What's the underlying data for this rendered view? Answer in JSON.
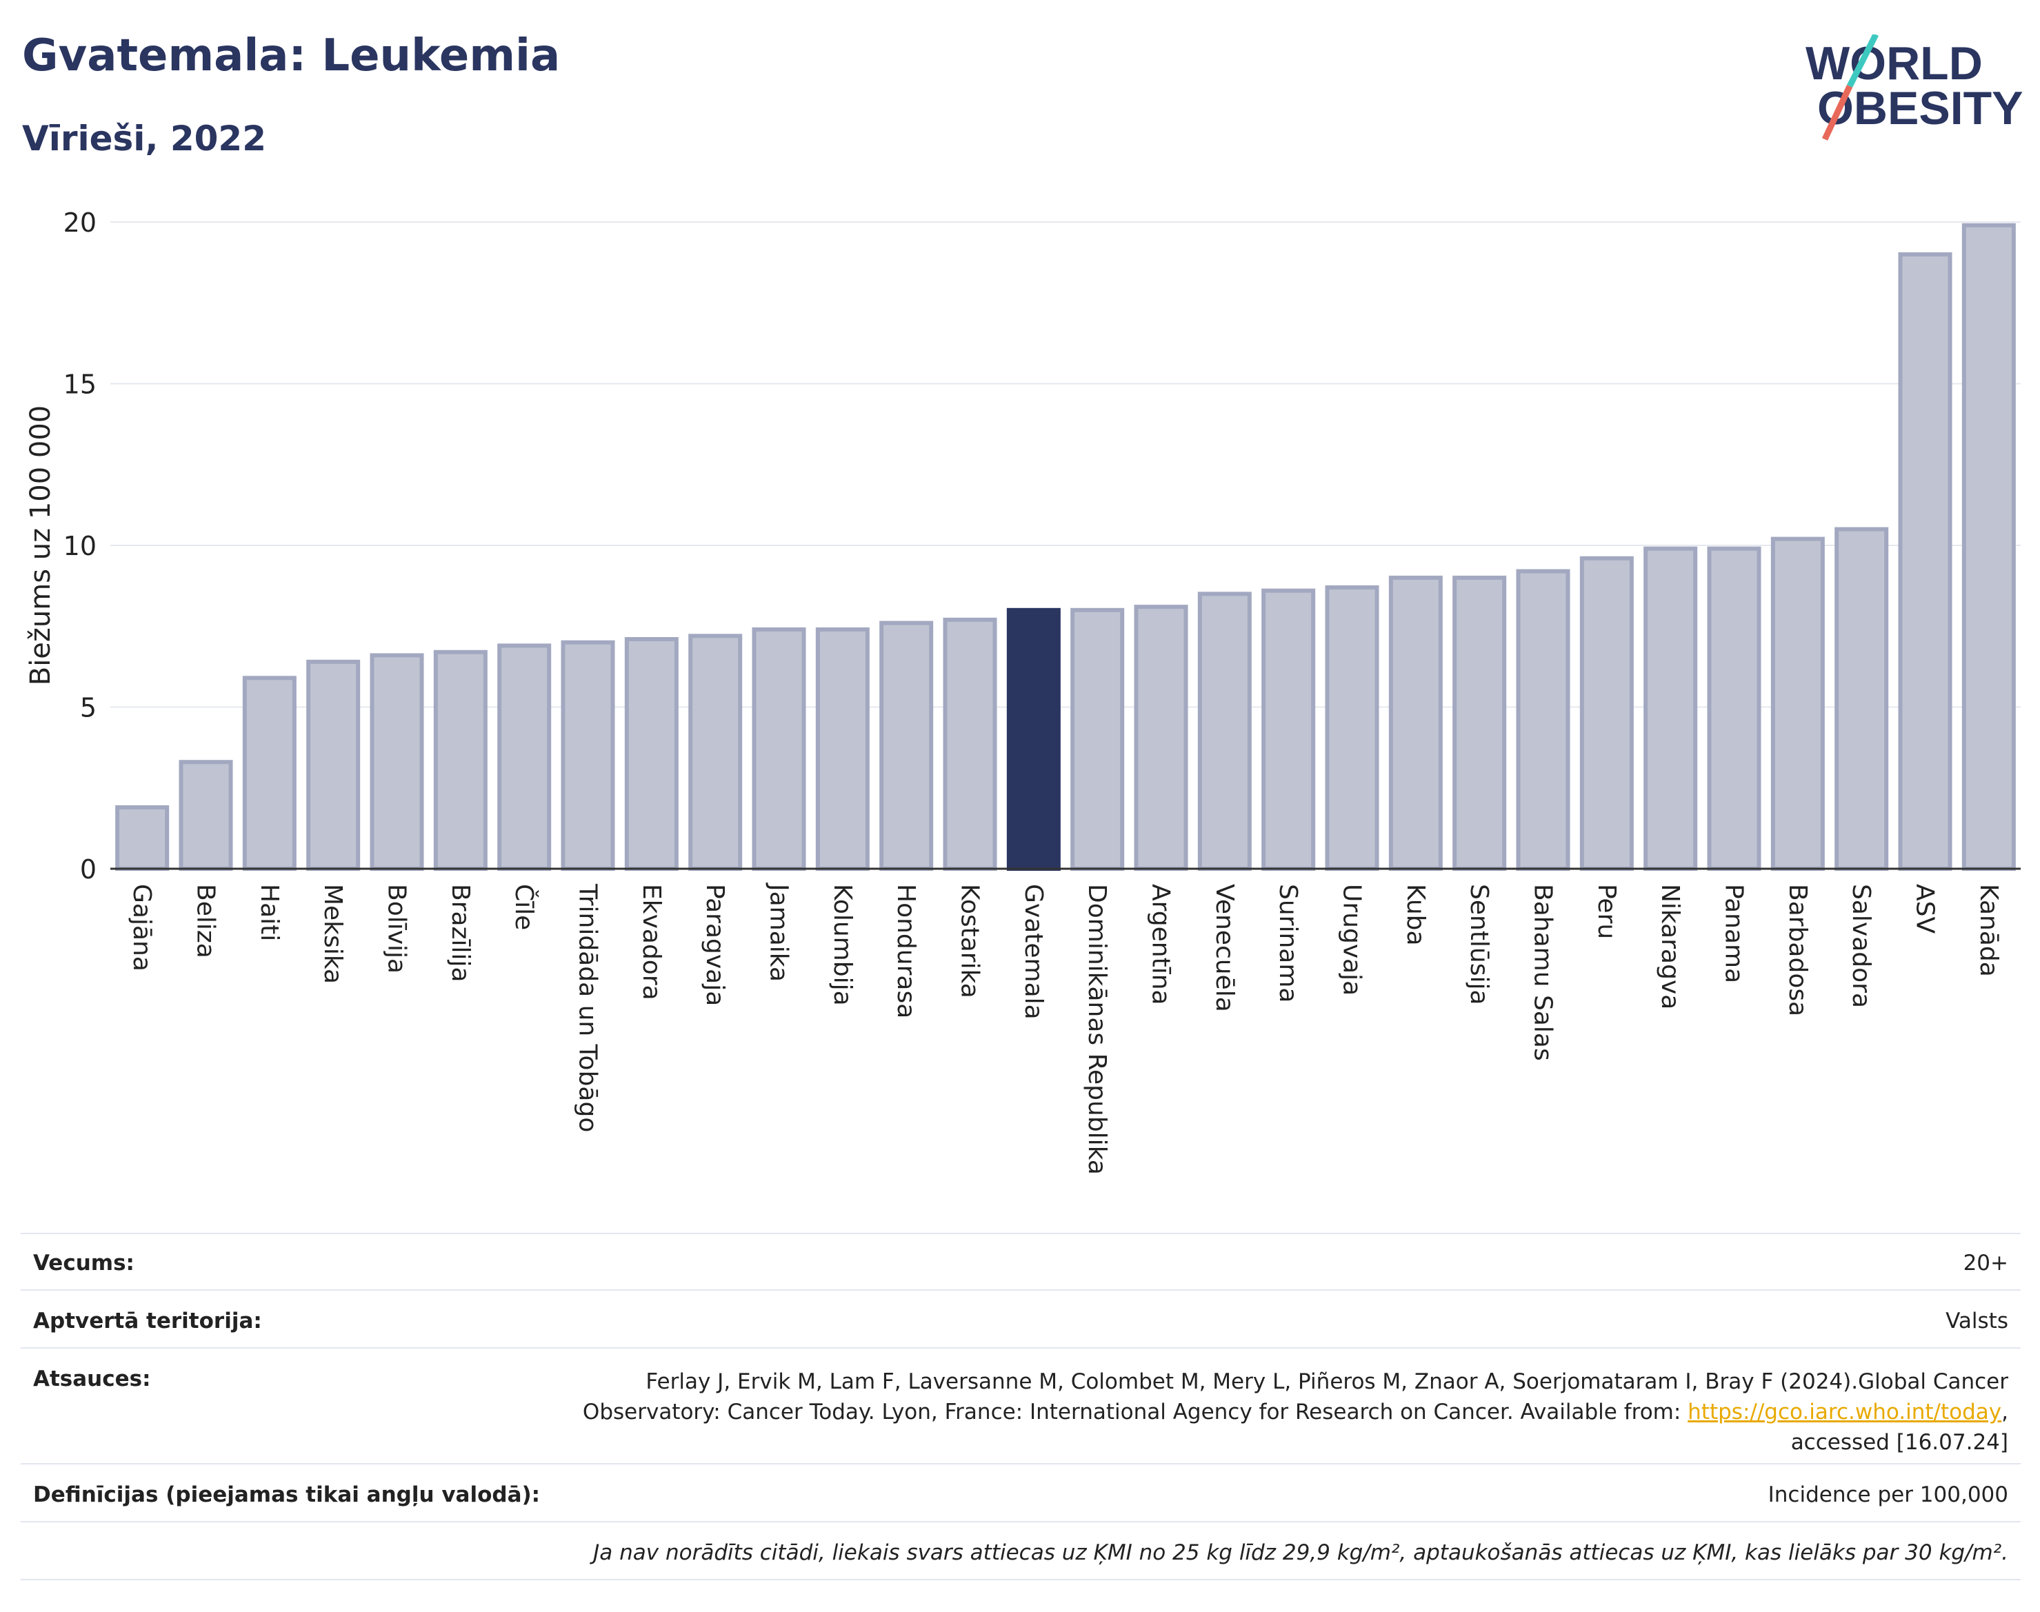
{
  "header": {
    "title": "Gvatemala: Leukemia",
    "subtitle": "Vīrieši, 2022"
  },
  "logo": {
    "line1": "WORLD",
    "line2": "OBESITY",
    "slash_color_top": "#3ec9c0",
    "slash_color_bottom": "#e8685a"
  },
  "colors": {
    "bar": "#c0c4d2",
    "bar_border": "#a2a8c0",
    "highlight": "#2a3560",
    "grid": "#e6e8ef"
  },
  "chart_data": {
    "type": "bar",
    "ylabel": "Biežums uz 100 000",
    "ylim": [
      0,
      20
    ],
    "yticks": [
      0,
      5,
      10,
      15,
      20
    ],
    "highlight": "Gvatemala",
    "categories": [
      "Gajāna",
      "Beliza",
      "Haiti",
      "Meksika",
      "Bolīvija",
      "Brazīlija",
      "Čīle",
      "Trinidāda un Tobāgo",
      "Ekvadora",
      "Paragvaja",
      "Jamaika",
      "Kolumbija",
      "Hondurasa",
      "Kostarika",
      "Gvatemala",
      "Dominikānas Republika",
      "Argentīna",
      "Venecuēla",
      "Surinama",
      "Urugvaja",
      "Kuba",
      "Sentlūsija",
      "Bahamu Salas",
      "Peru",
      "Nikaragva",
      "Panama",
      "Barbadosa",
      "Salvadora",
      "ASV",
      "Kanāda"
    ],
    "values": [
      1.9,
      3.3,
      5.9,
      6.4,
      6.6,
      6.7,
      6.9,
      7.0,
      7.1,
      7.2,
      7.4,
      7.4,
      7.6,
      7.7,
      8.0,
      8.0,
      8.1,
      8.5,
      8.6,
      8.7,
      9.0,
      9.0,
      9.2,
      9.6,
      9.9,
      9.9,
      10.2,
      10.5,
      19.0,
      19.9
    ]
  },
  "info": {
    "age_label": "Vecums:",
    "age_value": "20+",
    "territory_label": "Aptvertā teritorija:",
    "territory_value": "Valsts",
    "refs_label": "Atsauces:",
    "refs_line1": "Ferlay J, Ervik M, Lam F, Laversanne M, Colombet M, Mery L, Piñeros M, Znaor A, Soerjomataram I, Bray F (2024).Global Cancer",
    "refs_line2": "Observatory: Cancer Today. Lyon, France: International Agency for Research on Cancer. Available from: ",
    "refs_link": "https://gco.iarc.who.int/today",
    "refs_line2_end": ",",
    "refs_line3": "accessed [16.07.24]",
    "def_label": "Definīcijas (pieejamas tikai angļu valodā):",
    "def_value": "Incidence per 100,000",
    "note": "Ja nav norādīts citādi, liekais svars attiecas uz ĶMI no 25 kg līdz 29,9 kg/m², aptaukošanās attiecas uz ĶMI, kas lielāks par 30 kg/m²."
  }
}
